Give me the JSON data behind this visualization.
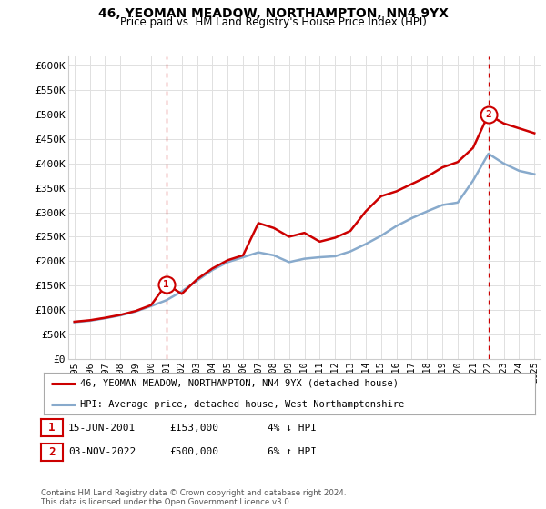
{
  "title": "46, YEOMAN MEADOW, NORTHAMPTON, NN4 9YX",
  "subtitle": "Price paid vs. HM Land Registry's House Price Index (HPI)",
  "ylim": [
    0,
    620000
  ],
  "yticks": [
    0,
    50000,
    100000,
    150000,
    200000,
    250000,
    300000,
    350000,
    400000,
    450000,
    500000,
    550000,
    600000
  ],
  "ytick_labels": [
    "£0",
    "£50K",
    "£100K",
    "£150K",
    "£200K",
    "£250K",
    "£300K",
    "£350K",
    "£400K",
    "£450K",
    "£500K",
    "£550K",
    "£600K"
  ],
  "xlim_start": 1994.6,
  "xlim_end": 2025.4,
  "xtick_years": [
    1995,
    1996,
    1997,
    1998,
    1999,
    2000,
    2001,
    2002,
    2003,
    2004,
    2005,
    2006,
    2007,
    2008,
    2009,
    2010,
    2011,
    2012,
    2013,
    2014,
    2015,
    2016,
    2017,
    2018,
    2019,
    2020,
    2021,
    2022,
    2023,
    2024,
    2025
  ],
  "hpi_years": [
    1995,
    1996,
    1997,
    1998,
    1999,
    2000,
    2001,
    2002,
    2003,
    2004,
    2005,
    2006,
    2007,
    2008,
    2009,
    2010,
    2011,
    2012,
    2013,
    2014,
    2015,
    2016,
    2017,
    2018,
    2019,
    2020,
    2021,
    2022,
    2023,
    2024,
    2025
  ],
  "hpi_values": [
    75000,
    78000,
    83000,
    89000,
    97000,
    108000,
    120000,
    138000,
    160000,
    182000,
    198000,
    208000,
    218000,
    212000,
    198000,
    205000,
    208000,
    210000,
    220000,
    235000,
    252000,
    272000,
    288000,
    302000,
    315000,
    320000,
    365000,
    420000,
    400000,
    385000,
    378000
  ],
  "price_years": [
    1995,
    1996,
    1997,
    1998,
    1999,
    2000,
    2001,
    2002,
    2003,
    2004,
    2005,
    2006,
    2007,
    2008,
    2009,
    2010,
    2011,
    2012,
    2013,
    2014,
    2015,
    2016,
    2017,
    2018,
    2019,
    2020,
    2021,
    2022,
    2023,
    2024,
    2025
  ],
  "price_values": [
    76000,
    79000,
    84000,
    90000,
    98000,
    110000,
    153000,
    133000,
    163000,
    185000,
    202000,
    212000,
    278000,
    268000,
    250000,
    258000,
    240000,
    248000,
    262000,
    302000,
    333000,
    343000,
    358000,
    373000,
    392000,
    403000,
    432000,
    500000,
    482000,
    472000,
    462000
  ],
  "sale1_year": 2001,
  "sale1_price": 153000,
  "sale1_label": "1",
  "sale2_year": 2022,
  "sale2_price": 500000,
  "sale2_label": "2",
  "line_color_price": "#cc0000",
  "line_color_hpi": "#88aacc",
  "vline_color": "#cc0000",
  "background_color": "#ffffff",
  "grid_color": "#e0e0e0",
  "legend1_label": "46, YEOMAN MEADOW, NORTHAMPTON, NN4 9YX (detached house)",
  "legend2_label": "HPI: Average price, detached house, West Northamptonshire",
  "sale1_date": "15-JUN-2001",
  "sale1_amount": "£153,000",
  "sale1_change": "4% ↓ HPI",
  "sale2_date": "03-NOV-2022",
  "sale2_amount": "£500,000",
  "sale2_change": "6% ↑ HPI",
  "footnote": "Contains HM Land Registry data © Crown copyright and database right 2024.\nThis data is licensed under the Open Government Licence v3.0."
}
